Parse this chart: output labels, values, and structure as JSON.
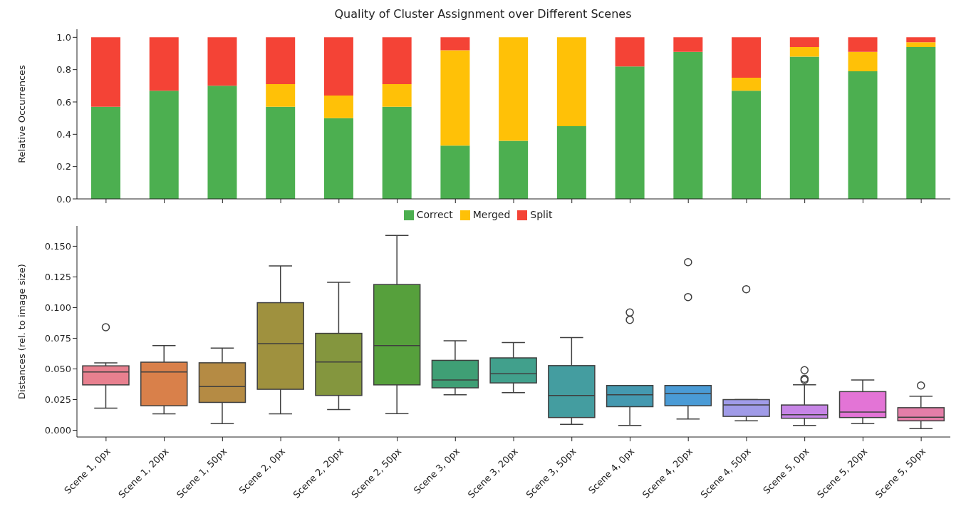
{
  "chart_data": [
    {
      "type": "bar",
      "title": "Quality of Cluster Assignment over Different Scenes",
      "ylabel": "Relative Occurrences",
      "stacked": true,
      "legend": "bottom",
      "tick_labels": "y",
      "categories": [
        null,
        null,
        null,
        null,
        null,
        null,
        null,
        null,
        null,
        null,
        null,
        null,
        null,
        null,
        null
      ],
      "series": [
        {
          "name": "Correct",
          "color": "#4caf50",
          "values": [
            0.57,
            0.67,
            0.7,
            0.57,
            0.5,
            0.57,
            0.33,
            0.36,
            0.45,
            0.82,
            0.91,
            0.67,
            0.88,
            0.79,
            0.94
          ]
        },
        {
          "name": "Merged",
          "color": "#ffc107",
          "values": [
            0,
            0,
            0,
            0.14,
            0.14,
            0.14,
            0.59,
            0.64,
            0.55,
            0,
            0,
            0.08,
            0.06,
            0.12,
            0.03
          ]
        },
        {
          "name": "Split",
          "color": "#f44336",
          "values": [
            0.43,
            0.33,
            0.3,
            0.29,
            0.36,
            0.29,
            0.08,
            0,
            0,
            0.18,
            0.09,
            0.25,
            0.06,
            0.09,
            0.03
          ]
        }
      ],
      "ylim": [
        0,
        1.05
      ],
      "yticks": [
        {
          "value": 0,
          "label": "0.0"
        },
        {
          "value": 0.2,
          "label": "0.2"
        },
        {
          "value": 0.4,
          "label": "0.4"
        },
        {
          "value": 0.6,
          "label": "0.6"
        },
        {
          "value": 0.8,
          "label": "0.8"
        },
        {
          "value": 1,
          "label": "1.0"
        }
      ]
    },
    {
      "type": "box",
      "ylabel": "Distances (rel. to image size)",
      "categories": [
        "Scene 1, 0px",
        "Scene 1, 20px",
        "Scene 1, 50px",
        "Scene 2, 0px",
        "Scene 2, 20px",
        "Scene 2, 50px",
        "Scene 3, 0px",
        "Scene 3, 20px",
        "Scene 3, 50px",
        "Scene 4, 0px",
        "Scene 4, 20px",
        "Scene 4, 50px",
        "Scene 5, 0px",
        "Scene 5, 20px",
        "Scene 5, 50px"
      ],
      "colors": [
        "#e8808f",
        "#d9804a",
        "#b58b44",
        "#9f913e",
        "#84963e",
        "#56a03c",
        "#3f9f75",
        "#41a08c",
        "#449da0",
        "#4499b0",
        "#4a9bd6",
        "#a09be8",
        "#c785e6",
        "#e374d6",
        "#e47ea8"
      ],
      "boxes": [
        {
          "low": 0.018,
          "q1": 0.037,
          "median": 0.0475,
          "q3": 0.0525,
          "high": 0.055,
          "outliers": [
            0.084
          ]
        },
        {
          "low": 0.0134,
          "q1": 0.02,
          "median": 0.0475,
          "q3": 0.0555,
          "high": 0.069
        },
        {
          "low": 0.0054,
          "q1": 0.0227,
          "median": 0.0356,
          "q3": 0.055,
          "high": 0.067
        },
        {
          "low": 0.0134,
          "q1": 0.0334,
          "median": 0.0706,
          "q3": 0.104,
          "high": 0.134
        },
        {
          "low": 0.0169,
          "q1": 0.0284,
          "median": 0.0556,
          "q3": 0.079,
          "high": 0.1206
        },
        {
          "low": 0.0136,
          "q1": 0.037,
          "median": 0.069,
          "q3": 0.1188,
          "high": 0.1588
        },
        {
          "low": 0.029,
          "q1": 0.0346,
          "median": 0.041,
          "q3": 0.057,
          "high": 0.073
        },
        {
          "low": 0.0306,
          "q1": 0.0386,
          "median": 0.046,
          "q3": 0.059,
          "high": 0.0715
        },
        {
          "low": 0.0048,
          "q1": 0.0104,
          "median": 0.0284,
          "q3": 0.0527,
          "high": 0.0756
        },
        {
          "low": 0.004,
          "q1": 0.0192,
          "median": 0.029,
          "q3": 0.0365,
          "high": 0.0365,
          "outliers": [
            0.096,
            0.09
          ]
        },
        {
          "low": 0.0092,
          "q1": 0.02,
          "median": 0.03,
          "q3": 0.0365,
          "high": 0.0365,
          "outliers": [
            0.137,
            0.1086
          ]
        },
        {
          "low": 0.0077,
          "q1": 0.0113,
          "median": 0.0206,
          "q3": 0.025,
          "high": 0.025,
          "outliers": [
            0.115
          ]
        },
        {
          "low": 0.004,
          "q1": 0.0098,
          "median": 0.0127,
          "q3": 0.0206,
          "high": 0.037,
          "outliers": [
            0.049,
            0.042,
            0.041
          ]
        },
        {
          "low": 0.0054,
          "q1": 0.0104,
          "median": 0.0148,
          "q3": 0.0315,
          "high": 0.041
        },
        {
          "low": 0.0013,
          "q1": 0.0077,
          "median": 0.0106,
          "q3": 0.0184,
          "high": 0.0277,
          "outliers": [
            0.0365
          ]
        }
      ],
      "ylim": [
        -0.0055,
        0.1665
      ],
      "yticks": [
        {
          "value": 0,
          "label": "0.000"
        },
        {
          "value": 0.025,
          "label": "0.025"
        },
        {
          "value": 0.05,
          "label": "0.050"
        },
        {
          "value": 0.075,
          "label": "0.075"
        },
        {
          "value": 0.1,
          "label": "0.100"
        },
        {
          "value": 0.125,
          "label": "0.125"
        },
        {
          "value": 0.15,
          "label": "0.150"
        }
      ]
    }
  ]
}
